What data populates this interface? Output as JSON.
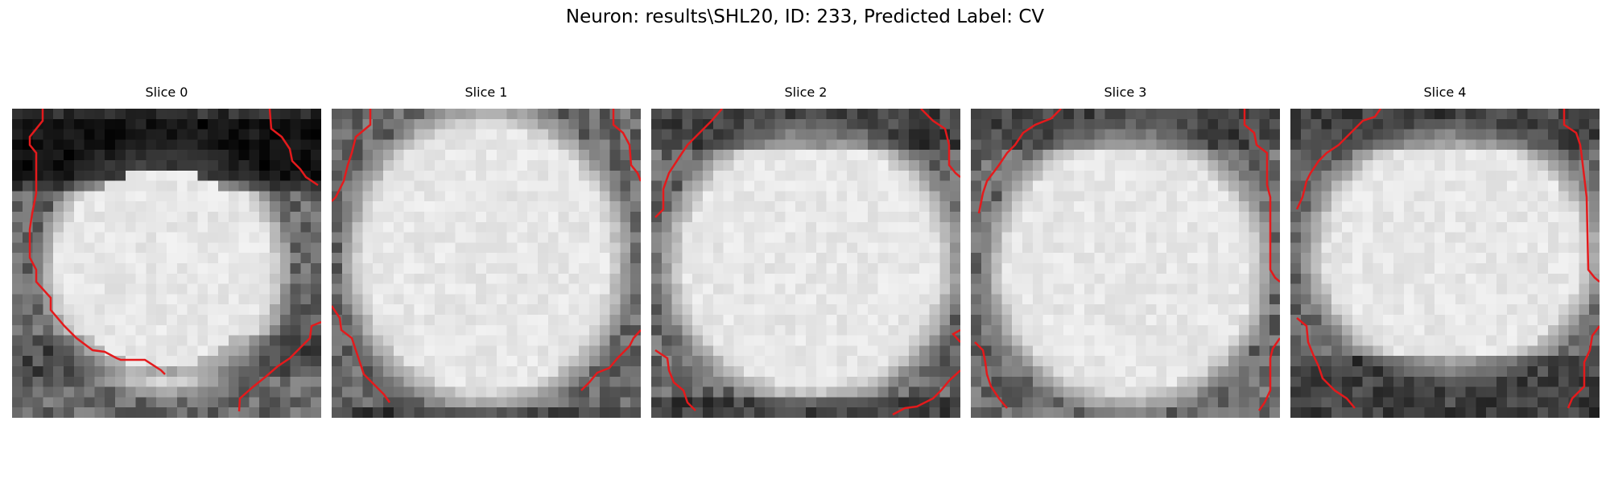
{
  "figure": {
    "title": "Neuron: results\\SHL20, ID: 233, Predicted Label: CV"
  },
  "panels": [
    {
      "title": "Slice 0"
    },
    {
      "title": "Slice 1"
    },
    {
      "title": "Slice 2"
    },
    {
      "title": "Slice 3"
    },
    {
      "title": "Slice 4"
    }
  ],
  "colors": {
    "contour": "#e41a1c",
    "colormap": "grayscale"
  }
}
